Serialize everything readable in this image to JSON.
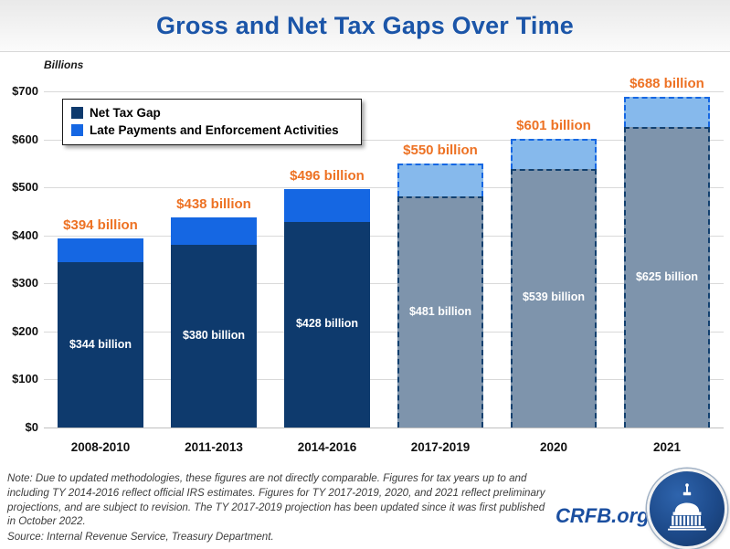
{
  "header": {
    "title": "Gross and Net Tax Gaps Over Time"
  },
  "axis_unit_label": "Billions",
  "chart_data": {
    "type": "bar",
    "stacked": true,
    "title": "Gross and Net Tax Gaps Over Time",
    "ylabel": "Billions",
    "xlabel": "",
    "grid": true,
    "legend_position": "top-left",
    "ylim": [
      0,
      700
    ],
    "categories": [
      "2008-2010",
      "2011-2013",
      "2014-2016",
      "2017-2019",
      "2020",
      "2021"
    ],
    "series": [
      {
        "name": "Net Tax Gap",
        "values": [
          344,
          380,
          428,
          481,
          539,
          625
        ]
      },
      {
        "name": "Late Payments and Enforcement Activities",
        "values": [
          50,
          58,
          68,
          69,
          62,
          63
        ]
      }
    ],
    "gross_totals": [
      394,
      438,
      496,
      550,
      601,
      688
    ],
    "total_labels": [
      "$394 billion",
      "$438 billion",
      "$496 billion",
      "$550 billion",
      "$601 billion",
      "$688 billion"
    ],
    "net_labels": [
      "$344 billion",
      "$380 billion",
      "$428 billion",
      "$481 billion",
      "$539 billion",
      "$625 billion"
    ],
    "projected": [
      false,
      false,
      false,
      true,
      true,
      true
    ],
    "y_ticks": [
      {
        "value": 0,
        "label": "$0"
      },
      {
        "value": 100,
        "label": "$100"
      },
      {
        "value": 200,
        "label": "$200"
      },
      {
        "value": 300,
        "label": "$300"
      },
      {
        "value": 400,
        "label": "$400"
      },
      {
        "value": 500,
        "label": "$500"
      },
      {
        "value": 600,
        "label": "$600"
      },
      {
        "value": 700,
        "label": "$700"
      }
    ],
    "colors": {
      "net_actual": "#0E3A6D",
      "late_actual": "#1567E3",
      "net_projected": "#7E94AC",
      "late_projected": "#86B9EC",
      "net_border": "#12406F",
      "late_border": "#1567E3",
      "total_label": "#ED7224",
      "in_bar_label": "#FFFFFF",
      "title": "#1B55A8"
    }
  },
  "legend": {
    "items": [
      {
        "label": "Net Tax Gap",
        "color": "#0E3A6D"
      },
      {
        "label": "Late Payments and Enforcement Activities",
        "color": "#1567E3"
      }
    ]
  },
  "footer": {
    "note": "Note: Due to updated methodologies, these figures are not directly comparable. Figures for tax years up to and including TY 2014-2016 reflect official IRS estimates. Figures for TY 2017-2019, 2020, and 2021 reflect preliminary projections, and are subject to revision. The TY 2017-2019 projection has been updated since it was first published in October 2022.",
    "source": "Source: Internal Revenue Service, Treasury Department."
  },
  "branding": {
    "site": "CRFB.org"
  }
}
